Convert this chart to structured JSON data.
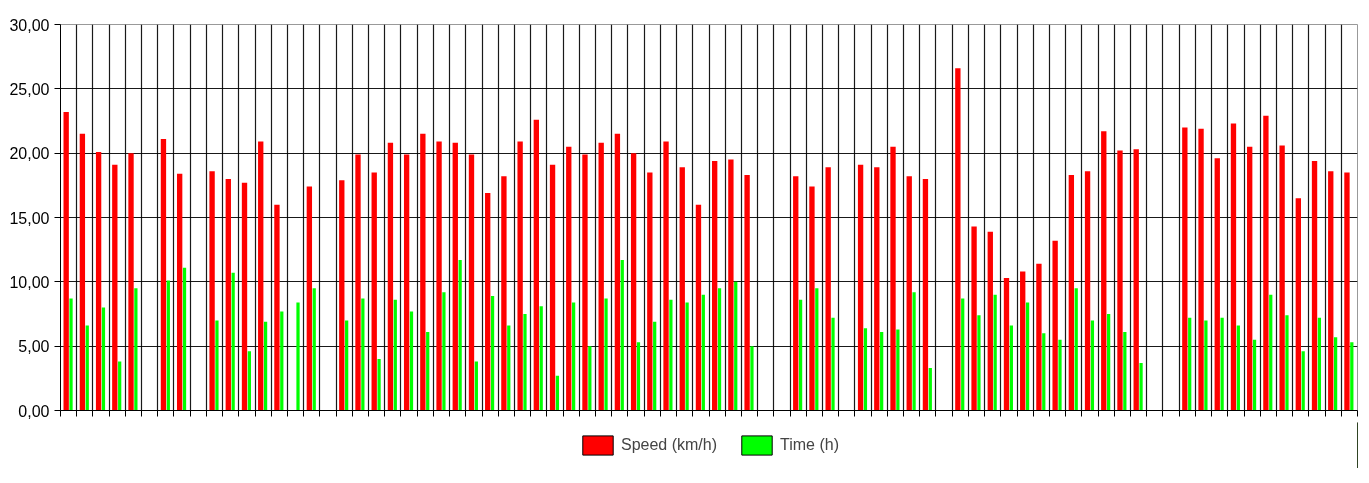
{
  "chart_data": {
    "type": "bar",
    "categories": [
      null,
      null,
      null,
      null,
      null,
      null,
      null,
      null,
      null,
      null,
      null,
      null,
      null,
      null,
      null,
      null,
      null,
      null,
      null,
      null,
      null,
      null,
      null,
      null,
      null,
      null,
      null,
      null,
      null,
      null,
      null,
      null,
      null,
      null,
      null,
      null,
      null,
      null,
      null,
      null,
      null,
      null,
      null,
      null,
      null,
      null,
      null,
      null,
      null,
      null,
      null,
      null,
      null,
      null,
      null,
      null,
      null,
      null,
      null,
      null,
      null,
      null,
      null,
      null,
      null,
      null,
      null,
      null,
      null,
      null,
      null,
      null,
      null,
      null,
      null,
      null,
      null,
      null,
      null,
      null
    ],
    "series": [
      {
        "name": "Speed (km/h)",
        "color": "#ff0000",
        "values": [
          23.2,
          21.5,
          20.1,
          19.1,
          20.0,
          null,
          21.1,
          18.4,
          null,
          18.6,
          18.0,
          17.7,
          20.9,
          16.0,
          null,
          17.4,
          null,
          17.9,
          19.9,
          18.5,
          20.8,
          19.9,
          21.5,
          20.9,
          20.8,
          19.9,
          16.9,
          18.2,
          20.9,
          22.6,
          19.1,
          20.5,
          19.9,
          20.8,
          21.5,
          20.0,
          18.5,
          20.9,
          18.9,
          16.0,
          19.4,
          19.5,
          18.3,
          null,
          null,
          18.2,
          17.4,
          18.9,
          null,
          19.1,
          18.9,
          20.5,
          18.2,
          18.0,
          null,
          26.6,
          14.3,
          13.9,
          10.3,
          10.8,
          11.4,
          13.2,
          18.3,
          18.6,
          21.7,
          20.2,
          20.3,
          null,
          null,
          22.0,
          21.9,
          19.6,
          22.3,
          20.5,
          22.9,
          20.6,
          16.5,
          19.4,
          18.6,
          18.5
        ]
      },
      {
        "name": "Time (h)",
        "color": "#00ff00",
        "values": [
          8.7,
          6.6,
          8.0,
          3.8,
          9.5,
          null,
          10.1,
          11.1,
          null,
          7.0,
          10.7,
          4.6,
          6.9,
          7.7,
          8.4,
          9.5,
          null,
          7.0,
          8.7,
          4.0,
          8.6,
          7.7,
          6.1,
          9.2,
          11.7,
          3.8,
          8.9,
          6.6,
          7.5,
          8.1,
          2.7,
          8.4,
          5.0,
          8.7,
          11.7,
          5.3,
          6.9,
          8.6,
          8.4,
          9.0,
          9.5,
          10.0,
          5.0,
          null,
          null,
          8.6,
          9.5,
          7.2,
          null,
          6.4,
          6.1,
          6.3,
          9.2,
          3.3,
          null,
          8.7,
          7.4,
          9.0,
          6.6,
          8.4,
          6.0,
          5.5,
          9.5,
          7.0,
          7.5,
          6.1,
          3.7,
          null,
          null,
          7.2,
          7.0,
          7.2,
          6.6,
          5.5,
          9.0,
          7.4,
          4.6,
          7.2,
          5.7,
          5.3
        ]
      }
    ],
    "ylim": [
      0,
      30
    ],
    "yticks": [
      {
        "value": 0,
        "label": "0,00"
      },
      {
        "value": 5,
        "label": "5,00"
      },
      {
        "value": 10,
        "label": "10,00"
      },
      {
        "value": 15,
        "label": "15,00"
      },
      {
        "value": 20,
        "label": "20,00"
      },
      {
        "value": 25,
        "label": "25,00"
      },
      {
        "value": 30,
        "label": "30,00"
      }
    ],
    "grid": true,
    "legend": "bottom",
    "tick_labels": "y"
  }
}
